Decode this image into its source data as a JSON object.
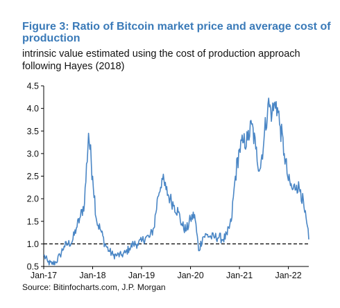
{
  "figure": {
    "title": "Figure 3: Ratio of Bitcoin market price and average cost of production",
    "subtitle": "intrinsic value estimated using the cost of production approach following Hayes (2018)",
    "source": "Source: Bitinfocharts.com, J.P. Morgan"
  },
  "chart_data": {
    "type": "line",
    "title": "Figure 3: Ratio of Bitcoin market price and average cost of production",
    "subtitle": "intrinsic value estimated using the cost of production approach following Hayes (2018)",
    "xlabel": "",
    "ylabel": "",
    "x_range": [
      "2017-01",
      "2022-06"
    ],
    "ylim": [
      0.5,
      4.5
    ],
    "x_ticks": [
      {
        "date": "2017-01",
        "label": "Jan-17"
      },
      {
        "date": "2018-01",
        "label": "Jan-18"
      },
      {
        "date": "2019-01",
        "label": "Jan-19"
      },
      {
        "date": "2020-01",
        "label": "Jan-20"
      },
      {
        "date": "2021-01",
        "label": "Jan-21"
      },
      {
        "date": "2022-01",
        "label": "Jan-22"
      }
    ],
    "y_ticks": [
      {
        "value": 0.5,
        "label": "0.5"
      },
      {
        "value": 1.0,
        "label": "1.0"
      },
      {
        "value": 1.5,
        "label": "1.5"
      },
      {
        "value": 2.0,
        "label": "2.0"
      },
      {
        "value": 2.5,
        "label": "2.5"
      },
      {
        "value": 3.0,
        "label": "3.0"
      },
      {
        "value": 3.5,
        "label": "3.5"
      },
      {
        "value": 4.0,
        "label": "4.0"
      },
      {
        "value": 4.5,
        "label": "4.5"
      }
    ],
    "reference_line": {
      "value": 1.0,
      "style": "dashed"
    },
    "grid": false,
    "legend": "none",
    "line_color": "#4a86c5",
    "series": [
      {
        "x": [
          "2017-01",
          "2017-02",
          "2017-03",
          "2017-04",
          "2017-05",
          "2017-06",
          "2017-07",
          "2017-08",
          "2017-09",
          "2017-10",
          "2017-11",
          "2017-12",
          "2018-01",
          "2018-02",
          "2018-03",
          "2018-04",
          "2018-05",
          "2018-06",
          "2018-07",
          "2018-08",
          "2018-09",
          "2018-10",
          "2018-11",
          "2018-12",
          "2019-01",
          "2019-02",
          "2019-03",
          "2019-04",
          "2019-05",
          "2019-06",
          "2019-07",
          "2019-08",
          "2019-09",
          "2019-10",
          "2019-11",
          "2019-12",
          "2020-01",
          "2020-02",
          "2020-03",
          "2020-04",
          "2020-05",
          "2020-06",
          "2020-07",
          "2020-08",
          "2020-09",
          "2020-10",
          "2020-11",
          "2020-12",
          "2021-01",
          "2021-02",
          "2021-03",
          "2021-04",
          "2021-05",
          "2021-06",
          "2021-07",
          "2021-08",
          "2021-09",
          "2021-10",
          "2021-11",
          "2021-12",
          "2022-01",
          "2022-02",
          "2022-03",
          "2022-04",
          "2022-05",
          "2022-06"
        ],
        "values": [
          0.75,
          0.6,
          0.55,
          0.6,
          0.75,
          0.95,
          1.0,
          1.05,
          1.35,
          1.6,
          1.9,
          3.45,
          2.5,
          1.5,
          1.3,
          1.0,
          0.85,
          0.75,
          0.75,
          0.75,
          0.8,
          0.9,
          1.0,
          1.0,
          1.05,
          1.15,
          1.15,
          1.35,
          2.05,
          2.45,
          2.2,
          2.0,
          1.85,
          1.7,
          1.4,
          1.3,
          1.55,
          1.65,
          0.85,
          1.15,
          1.2,
          1.15,
          1.15,
          1.15,
          1.1,
          1.2,
          1.5,
          2.5,
          3.1,
          3.25,
          3.3,
          3.65,
          3.1,
          2.65,
          3.3,
          4.1,
          3.9,
          4.15,
          3.6,
          3.0,
          2.4,
          2.2,
          2.3,
          2.2,
          1.7,
          1.1
        ]
      }
    ]
  }
}
